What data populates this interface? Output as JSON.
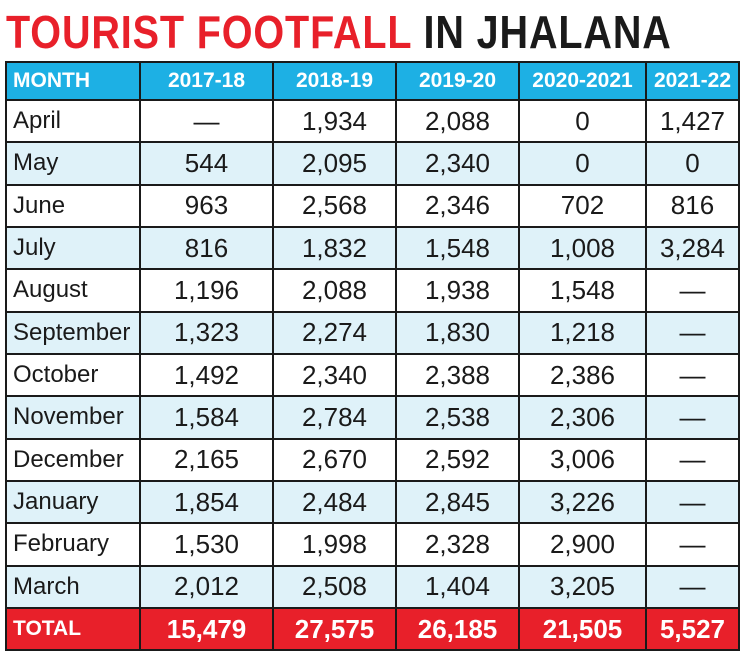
{
  "title": {
    "part1": "TOURIST FOOTFALL",
    "part2": " IN JHALANA"
  },
  "colors": {
    "title_red": "#e8202a",
    "header_blue": "#1db0e4",
    "row_shade": "#dff2f9",
    "total_red": "#e8202a"
  },
  "chart_data": {
    "type": "table",
    "title": "TOURIST FOOTFALL IN JHALANA",
    "columns": [
      "MONTH",
      "2017-18",
      "2018-19",
      "2019-20",
      "2020-2021",
      "2021-22"
    ],
    "rows": [
      [
        "April",
        "—",
        "1,934",
        "2,088",
        "0",
        "1,427"
      ],
      [
        "May",
        "544",
        "2,095",
        "2,340",
        "0",
        "0"
      ],
      [
        "June",
        "963",
        "2,568",
        "2,346",
        "702",
        "816"
      ],
      [
        "July",
        "816",
        "1,832",
        "1,548",
        "1,008",
        "3,284"
      ],
      [
        "August",
        "1,196",
        "2,088",
        "1,938",
        "1,548",
        "—"
      ],
      [
        "September",
        "1,323",
        "2,274",
        "1,830",
        "1,218",
        "—"
      ],
      [
        "October",
        "1,492",
        "2,340",
        "2,388",
        "2,386",
        "—"
      ],
      [
        "November",
        "1,584",
        "2,784",
        "2,538",
        "2,306",
        "—"
      ],
      [
        "December",
        "2,165",
        "2,670",
        "2,592",
        "3,006",
        "—"
      ],
      [
        "January",
        "1,854",
        "2,484",
        "2,845",
        "3,226",
        "—"
      ],
      [
        "February",
        "1,530",
        "1,998",
        "2,328",
        "2,900",
        "—"
      ],
      [
        "March",
        "2,012",
        "2,508",
        "1,404",
        "3,205",
        "—"
      ]
    ],
    "total": [
      "TOTAL",
      "15,479",
      "27,575",
      "26,185",
      "21,505",
      "5,527"
    ]
  }
}
